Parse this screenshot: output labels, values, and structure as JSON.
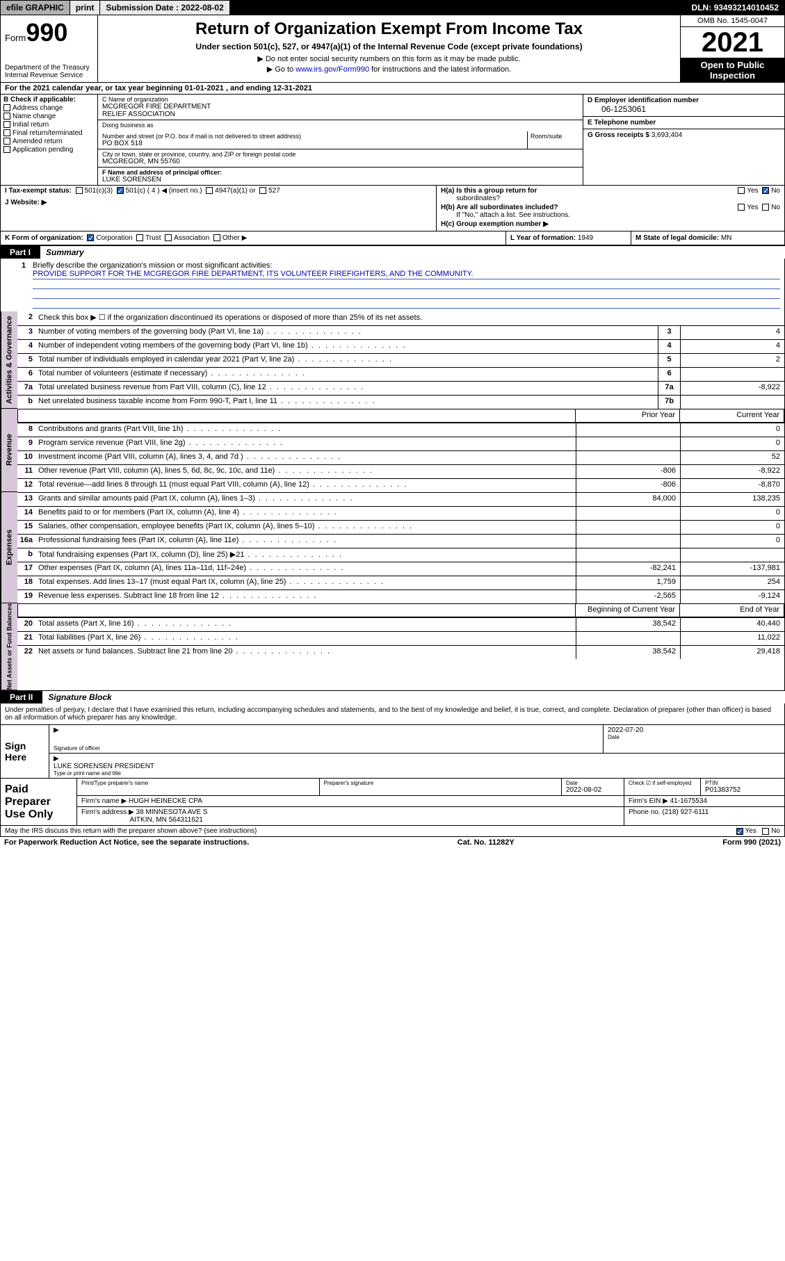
{
  "topbar": {
    "efile": "efile GRAPHIC",
    "print": "print",
    "submission_label": "Submission Date :",
    "submission_date": "2022-08-02",
    "dln_label": "DLN:",
    "dln": "93493214010452"
  },
  "header": {
    "form_word": "Form",
    "form_number": "990",
    "title": "Return of Organization Exempt From Income Tax",
    "subtitle": "Under section 501(c), 527, or 4947(a)(1) of the Internal Revenue Code (except private foundations)",
    "note1": "▶ Do not enter social security numbers on this form as it may be made public.",
    "note2_pre": "▶ Go to ",
    "note2_link": "www.irs.gov/Form990",
    "note2_post": " for instructions and the latest information.",
    "dept": "Department of the Treasury",
    "irs": "Internal Revenue Service",
    "omb_label": "OMB No.",
    "omb": "1545-0047",
    "year": "2021",
    "open": "Open to Public Inspection"
  },
  "row_a": {
    "prefix": "A",
    "text": "For the 2021 calendar year, or tax year beginning 01-01-2021   , and ending 12-31-2021"
  },
  "section_b": {
    "header": "B Check if applicable:",
    "items": [
      "Address change",
      "Name change",
      "Initial return",
      "Final return/terminated",
      "Amended return",
      "Application pending"
    ]
  },
  "section_c": {
    "name_label": "C Name of organization",
    "name1": "MCGREGOR FIRE DEPARTMENT",
    "name2": "RELIEF ASSOCIATION",
    "dba_label": "Doing business as",
    "addr_label": "Number and street (or P.O. box if mail is not delivered to street address)",
    "addr": "PO BOX 518",
    "room_label": "Room/suite",
    "city_label": "City or town, state or province, country, and ZIP or foreign postal code",
    "city": "MCGREGOR, MN  55760"
  },
  "section_d": {
    "label": "D Employer identification number",
    "value": "06-1253061"
  },
  "section_e": {
    "label": "E Telephone number",
    "value": ""
  },
  "section_g": {
    "label": "G Gross receipts $",
    "value": "3,693,404"
  },
  "section_f": {
    "label": "F  Name and address of principal officer:",
    "value": "LUKE SORENSEN"
  },
  "section_h": {
    "ha_label": "H(a)  Is this a group return for",
    "ha_sub": "subordinates?",
    "hb_label": "H(b)  Are all subordinates included?",
    "hb_note": "If \"No,\" attach a list. See instructions.",
    "hc_label": "H(c)  Group exemption number ▶",
    "yes": "Yes",
    "no": "No"
  },
  "section_i": {
    "label": "I     Tax-exempt status:",
    "opt1": "501(c)(3)",
    "opt2": "501(c) ( 4 ) ◀ (insert no.)",
    "opt3": "4947(a)(1) or",
    "opt4": "527"
  },
  "section_j": {
    "label": "J    Website: ▶"
  },
  "section_k": {
    "label": "K Form of organization:",
    "opts": [
      "Corporation",
      "Trust",
      "Association",
      "Other ▶"
    ]
  },
  "section_l": {
    "label": "L Year of formation:",
    "value": "1949"
  },
  "section_m": {
    "label": "M State of legal domicile:",
    "value": "MN"
  },
  "part1": {
    "tag": "Part I",
    "title": "Summary",
    "line1_label": "Briefly describe the organization's mission or most significant activities:",
    "line1_text": "PROVIDE SUPPORT FOR THE MCGREGOR FIRE DEPARTMENT, ITS VOLUNTEER FIREFIGHTERS, AND THE COMMUNITY.",
    "line2": "Check this box ▶ ☐  if the organization discontinued its operations or disposed of more than 25% of its net assets.",
    "sidebars": {
      "ag": "Activities & Governance",
      "rev": "Revenue",
      "exp": "Expenses",
      "na": "Net Assets or Fund Balances"
    },
    "cols": {
      "prior": "Prior Year",
      "current": "Current Year",
      "begin": "Beginning of Current Year",
      "end": "End of Year"
    },
    "lines_ag": [
      {
        "n": "3",
        "d": "Number of voting members of the governing body (Part VI, line 1a)",
        "box": "3",
        "v": "4"
      },
      {
        "n": "4",
        "d": "Number of independent voting members of the governing body (Part VI, line 1b)",
        "box": "4",
        "v": "4"
      },
      {
        "n": "5",
        "d": "Total number of individuals employed in calendar year 2021 (Part V, line 2a)",
        "box": "5",
        "v": "2"
      },
      {
        "n": "6",
        "d": "Total number of volunteers (estimate if necessary)",
        "box": "6",
        "v": ""
      },
      {
        "n": "7a",
        "d": "Total unrelated business revenue from Part VIII, column (C), line 12",
        "box": "7a",
        "v": "-8,922"
      },
      {
        "n": "b",
        "d": "Net unrelated business taxable income from Form 990-T, Part I, line 11",
        "box": "7b",
        "v": "",
        "indent": true
      }
    ],
    "lines_rev": [
      {
        "n": "8",
        "d": "Contributions and grants (Part VIII, line 1h)",
        "p": "",
        "c": "0"
      },
      {
        "n": "9",
        "d": "Program service revenue (Part VIII, line 2g)",
        "p": "",
        "c": "0"
      },
      {
        "n": "10",
        "d": "Investment income (Part VIII, column (A), lines 3, 4, and 7d )",
        "p": "",
        "c": "52"
      },
      {
        "n": "11",
        "d": "Other revenue (Part VIII, column (A), lines 5, 6d, 8c, 9c, 10c, and 11e)",
        "p": "-806",
        "c": "-8,922"
      },
      {
        "n": "12",
        "d": "Total revenue—add lines 8 through 11 (must equal Part VIII, column (A), line 12)",
        "p": "-806",
        "c": "-8,870"
      }
    ],
    "lines_exp": [
      {
        "n": "13",
        "d": "Grants and similar amounts paid (Part IX, column (A), lines 1–3)",
        "p": "84,000",
        "c": "138,235"
      },
      {
        "n": "14",
        "d": "Benefits paid to or for members (Part IX, column (A), line 4)",
        "p": "",
        "c": "0"
      },
      {
        "n": "15",
        "d": "Salaries, other compensation, employee benefits (Part IX, column (A), lines 5–10)",
        "p": "",
        "c": "0"
      },
      {
        "n": "16a",
        "d": "Professional fundraising fees (Part IX, column (A), line 11e)",
        "p": "",
        "c": "0"
      },
      {
        "n": "b",
        "d": "Total fundraising expenses (Part IX, column (D), line 25) ▶21",
        "p": "SHADE",
        "c": "SHADE",
        "indent": true
      },
      {
        "n": "17",
        "d": "Other expenses (Part IX, column (A), lines 11a–11d, 11f–24e)",
        "p": "-82,241",
        "c": "-137,981"
      },
      {
        "n": "18",
        "d": "Total expenses. Add lines 13–17 (must equal Part IX, column (A), line 25)",
        "p": "1,759",
        "c": "254"
      },
      {
        "n": "19",
        "d": "Revenue less expenses. Subtract line 18 from line 12",
        "p": "-2,565",
        "c": "-9,124"
      }
    ],
    "lines_na": [
      {
        "n": "20",
        "d": "Total assets (Part X, line 16)",
        "p": "38,542",
        "c": "40,440"
      },
      {
        "n": "21",
        "d": "Total liabilities (Part X, line 26)",
        "p": "",
        "c": "11,022"
      },
      {
        "n": "22",
        "d": "Net assets or fund balances. Subtract line 21 from line 20",
        "p": "38,542",
        "c": "29,418"
      }
    ]
  },
  "part2": {
    "tag": "Part II",
    "title": "Signature Block",
    "decl": "Under penalties of perjury, I declare that I have examined this return, including accompanying schedules and statements, and to the best of my knowledge and belief, it is true, correct, and complete. Declaration of preparer (other than officer) is based on all information of which preparer has any knowledge.",
    "sign_here": "Sign Here",
    "sig_officer_label": "Signature of officer",
    "sig_date": "2022-07-20",
    "date_label": "Date",
    "officer_name": "LUKE SORENSEN PRESIDENT",
    "officer_label": "Type or print name and title",
    "paid": "Paid Preparer Use Only",
    "prep_name_label": "Print/Type preparer's name",
    "prep_sig_label": "Preparer's signature",
    "prep_date_label": "Date",
    "prep_date": "2022-08-02",
    "prep_check_label": "Check ☑ if self-employed",
    "ptin_label": "PTIN",
    "ptin": "P01383752",
    "firm_name_label": "Firm's name    ▶",
    "firm_name": "HUGH HEINECKE CPA",
    "firm_ein_label": "Firm's EIN ▶",
    "firm_ein": "41-1675534",
    "firm_addr_label": "Firm's address ▶",
    "firm_addr1": "38 MINNESOTA AVE S",
    "firm_addr2": "AITKIN, MN  564311621",
    "firm_phone_label": "Phone no.",
    "firm_phone": "(218) 927-6111"
  },
  "footer": {
    "q": "May the IRS discuss this return with the preparer shown above? (see instructions)",
    "yes": "Yes",
    "no": "No"
  },
  "bottom": {
    "left": "For Paperwork Reduction Act Notice, see the separate instructions.",
    "mid": "Cat. No. 11282Y",
    "right": "Form 990 (2021)"
  }
}
